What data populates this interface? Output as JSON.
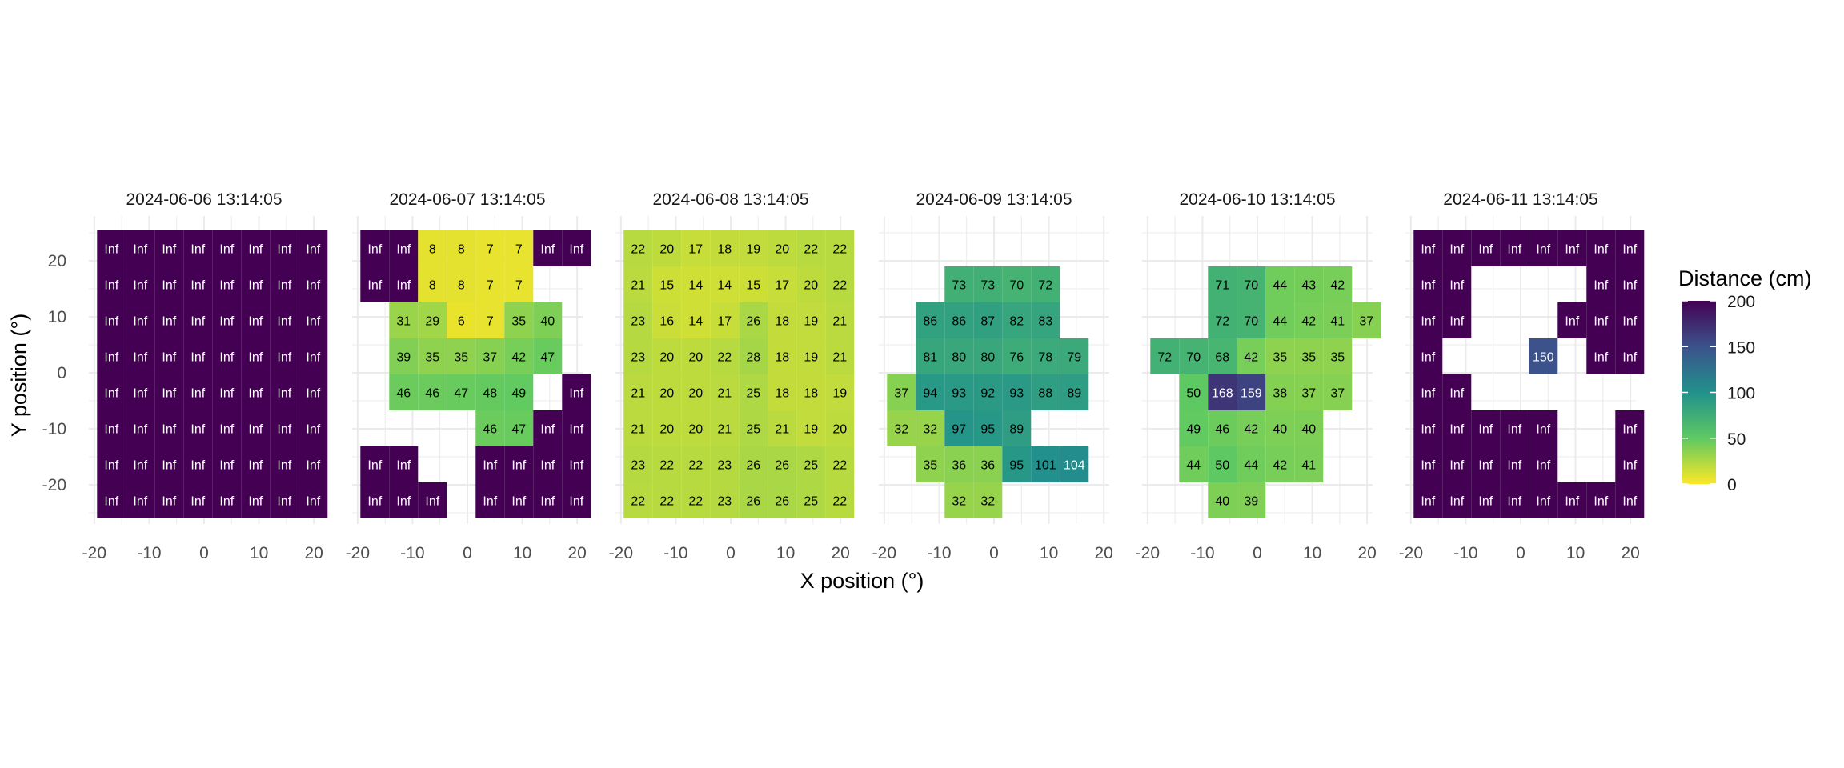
{
  "chart_data": {
    "type": "heatmap",
    "xlabel": "X position (°)",
    "ylabel": "Y position (°)",
    "x_ticks": [
      -20,
      -10,
      0,
      10,
      20
    ],
    "y_ticks": [
      20,
      10,
      0,
      -10,
      -20
    ],
    "x_centers": [
      -17.5,
      -12.5,
      -7.5,
      -2.5,
      2.5,
      7.5,
      12.5,
      17.5
    ],
    "y_centers": [
      22.5,
      16.5,
      10.5,
      3.5,
      -3.5,
      -10.5,
      -16.5,
      -23
    ],
    "xlim": [
      -21,
      21
    ],
    "ylim": [
      -27,
      28
    ],
    "legend": {
      "title": "Distance (cm)",
      "ticks": [
        200,
        150,
        100,
        50,
        0
      ],
      "range": [
        0,
        200
      ],
      "placement": "right",
      "palette": "viridis (reversed)"
    },
    "colors": {
      "inf": "#440154",
      "gridline": "#ebebeb",
      "scale_stops": [
        "#fde725",
        "#5ec962",
        "#21918c",
        "#3b528b",
        "#440154"
      ]
    },
    "panels": [
      {
        "title": "2024-06-06 13:14:05",
        "grid": [
          [
            "Inf",
            "Inf",
            "Inf",
            "Inf",
            "Inf",
            "Inf",
            "Inf",
            "Inf"
          ],
          [
            "Inf",
            "Inf",
            "Inf",
            "Inf",
            "Inf",
            "Inf",
            "Inf",
            "Inf"
          ],
          [
            "Inf",
            "Inf",
            "Inf",
            "Inf",
            "Inf",
            "Inf",
            "Inf",
            "Inf"
          ],
          [
            "Inf",
            "Inf",
            "Inf",
            "Inf",
            "Inf",
            "Inf",
            "Inf",
            "Inf"
          ],
          [
            "Inf",
            "Inf",
            "Inf",
            "Inf",
            "Inf",
            "Inf",
            "Inf",
            "Inf"
          ],
          [
            "Inf",
            "Inf",
            "Inf",
            "Inf",
            "Inf",
            "Inf",
            "Inf",
            "Inf"
          ],
          [
            "Inf",
            "Inf",
            "Inf",
            "Inf",
            "Inf",
            "Inf",
            "Inf",
            "Inf"
          ],
          [
            "Inf",
            "Inf",
            "Inf",
            "Inf",
            "Inf",
            "Inf",
            "Inf",
            "Inf"
          ]
        ]
      },
      {
        "title": "2024-06-07 13:14:05",
        "grid": [
          [
            "Inf",
            "Inf",
            8,
            8,
            7,
            7,
            "Inf",
            "Inf"
          ],
          [
            "Inf",
            "Inf",
            8,
            8,
            7,
            7,
            null,
            null
          ],
          [
            null,
            31,
            29,
            6,
            7,
            35,
            40,
            null
          ],
          [
            null,
            39,
            35,
            35,
            37,
            42,
            47,
            null
          ],
          [
            null,
            46,
            46,
            47,
            48,
            49,
            null,
            "Inf"
          ],
          [
            null,
            null,
            null,
            null,
            46,
            47,
            "Inf",
            "Inf"
          ],
          [
            "Inf",
            "Inf",
            null,
            null,
            "Inf",
            "Inf",
            "Inf",
            "Inf"
          ],
          [
            "Inf",
            "Inf",
            "Inf",
            null,
            "Inf",
            "Inf",
            "Inf",
            "Inf"
          ]
        ]
      },
      {
        "title": "2024-06-08 13:14:05",
        "grid": [
          [
            22,
            20,
            17,
            18,
            19,
            20,
            22,
            22
          ],
          [
            21,
            15,
            14,
            14,
            15,
            17,
            20,
            22
          ],
          [
            23,
            16,
            14,
            17,
            26,
            18,
            19,
            21
          ],
          [
            23,
            20,
            20,
            22,
            28,
            18,
            19,
            21
          ],
          [
            21,
            20,
            20,
            21,
            25,
            18,
            18,
            19
          ],
          [
            21,
            20,
            20,
            21,
            25,
            21,
            19,
            20
          ],
          [
            23,
            22,
            22,
            23,
            26,
            26,
            25,
            22
          ],
          [
            22,
            22,
            22,
            23,
            26,
            26,
            25,
            22
          ]
        ]
      },
      {
        "title": "2024-06-09 13:14:05",
        "grid": [
          [
            null,
            null,
            null,
            null,
            null,
            null,
            null,
            null
          ],
          [
            null,
            null,
            73,
            73,
            70,
            72,
            null,
            null
          ],
          [
            null,
            86,
            86,
            87,
            82,
            83,
            null,
            null
          ],
          [
            null,
            81,
            80,
            80,
            76,
            78,
            79,
            null
          ],
          [
            37,
            94,
            93,
            92,
            93,
            88,
            89,
            null
          ],
          [
            32,
            32,
            97,
            95,
            89,
            null,
            null,
            null
          ],
          [
            null,
            35,
            36,
            36,
            95,
            101,
            104,
            null
          ],
          [
            null,
            null,
            32,
            32,
            null,
            null,
            null,
            null
          ]
        ]
      },
      {
        "title": "2024-06-10 13:14:05",
        "grid": [
          [
            null,
            null,
            null,
            null,
            null,
            null,
            null,
            null
          ],
          [
            null,
            null,
            71,
            70,
            44,
            43,
            42,
            null
          ],
          [
            null,
            null,
            72,
            70,
            44,
            42,
            41,
            37
          ],
          [
            72,
            70,
            68,
            42,
            35,
            35,
            35,
            null
          ],
          [
            null,
            50,
            168,
            159,
            38,
            37,
            37,
            null
          ],
          [
            null,
            49,
            46,
            42,
            40,
            40,
            null,
            null
          ],
          [
            null,
            44,
            50,
            44,
            42,
            41,
            null,
            null
          ],
          [
            null,
            null,
            40,
            39,
            null,
            null,
            null,
            null
          ]
        ]
      },
      {
        "title": "2024-06-11 13:14:05",
        "grid": [
          [
            "Inf",
            "Inf",
            "Inf",
            "Inf",
            "Inf",
            "Inf",
            "Inf",
            "Inf"
          ],
          [
            "Inf",
            "Inf",
            null,
            null,
            null,
            null,
            "Inf",
            "Inf"
          ],
          [
            "Inf",
            "Inf",
            null,
            null,
            null,
            "Inf",
            "Inf",
            "Inf"
          ],
          [
            "Inf",
            null,
            null,
            null,
            150,
            null,
            "Inf",
            "Inf"
          ],
          [
            "Inf",
            "Inf",
            null,
            null,
            null,
            null,
            null,
            null
          ],
          [
            "Inf",
            "Inf",
            "Inf",
            "Inf",
            "Inf",
            null,
            null,
            "Inf"
          ],
          [
            "Inf",
            "Inf",
            "Inf",
            "Inf",
            "Inf",
            null,
            null,
            "Inf"
          ],
          [
            "Inf",
            "Inf",
            "Inf",
            "Inf",
            "Inf",
            "Inf",
            "Inf",
            "Inf"
          ]
        ]
      }
    ]
  }
}
